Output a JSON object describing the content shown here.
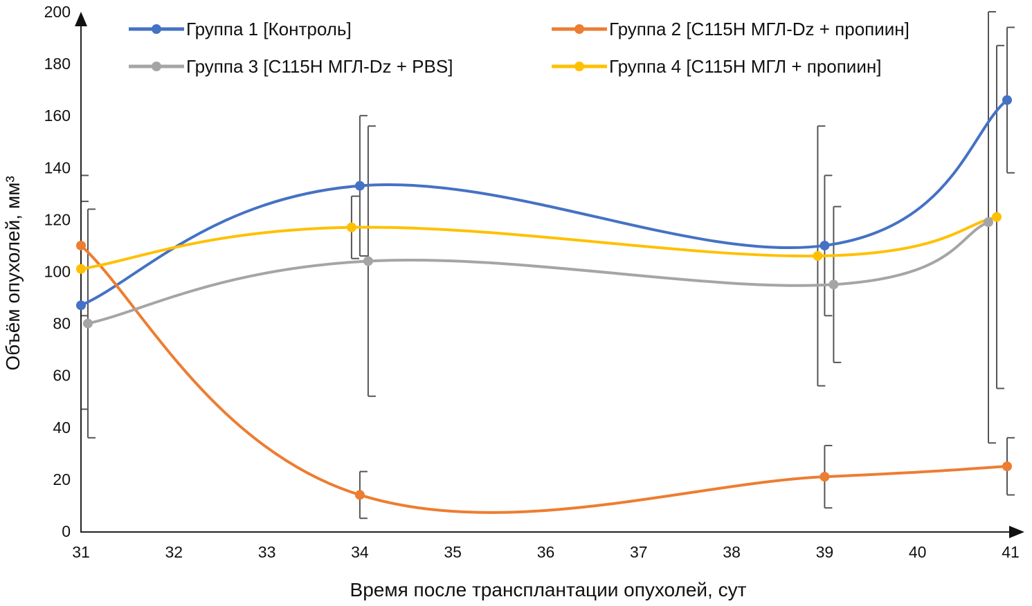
{
  "chart_data": {
    "type": "line",
    "title": "",
    "xlabel": "Время после трансплантации опухолей, сут",
    "ylabel": "Объём опухолей, мм³",
    "xlim": [
      31,
      41
    ],
    "ylim": [
      0,
      200
    ],
    "x_ticks": [
      31,
      32,
      33,
      34,
      35,
      36,
      37,
      38,
      39,
      40,
      41
    ],
    "y_ticks": [
      0,
      20,
      40,
      60,
      80,
      100,
      120,
      140,
      160,
      180,
      200
    ],
    "grid": false,
    "legend_position": "top",
    "series": [
      {
        "name": "Группа 1 [Контроль]",
        "color": "#4472c4",
        "x": [
          31,
          34,
          39,
          41
        ],
        "values": [
          87,
          133,
          110,
          166
        ],
        "errors": [
          40,
          27,
          27,
          28
        ]
      },
      {
        "name": "Группа 2 [С115Н МГЛ-Dz + пропиин]",
        "color": "#ed7d31",
        "x": [
          31,
          34,
          39,
          41
        ],
        "values": [
          110,
          14,
          21,
          25
        ],
        "errors": [
          27,
          9,
          12,
          11
        ]
      },
      {
        "name": "Группа 3 [С115Н МГЛ-Dz + PBS]",
        "color": "#a5a5a5",
        "x": [
          31,
          34,
          39,
          41
        ],
        "values": [
          80,
          104,
          95,
          119
        ],
        "errors": [
          44,
          52,
          30,
          85
        ]
      },
      {
        "name": "Группа 4 [С115Н МГЛ + пропиин]",
        "color": "#ffc000",
        "x": [
          31,
          34,
          39,
          41
        ],
        "values": [
          101,
          117,
          106,
          121
        ],
        "errors": [
          0,
          12,
          50,
          66
        ]
      }
    ]
  }
}
